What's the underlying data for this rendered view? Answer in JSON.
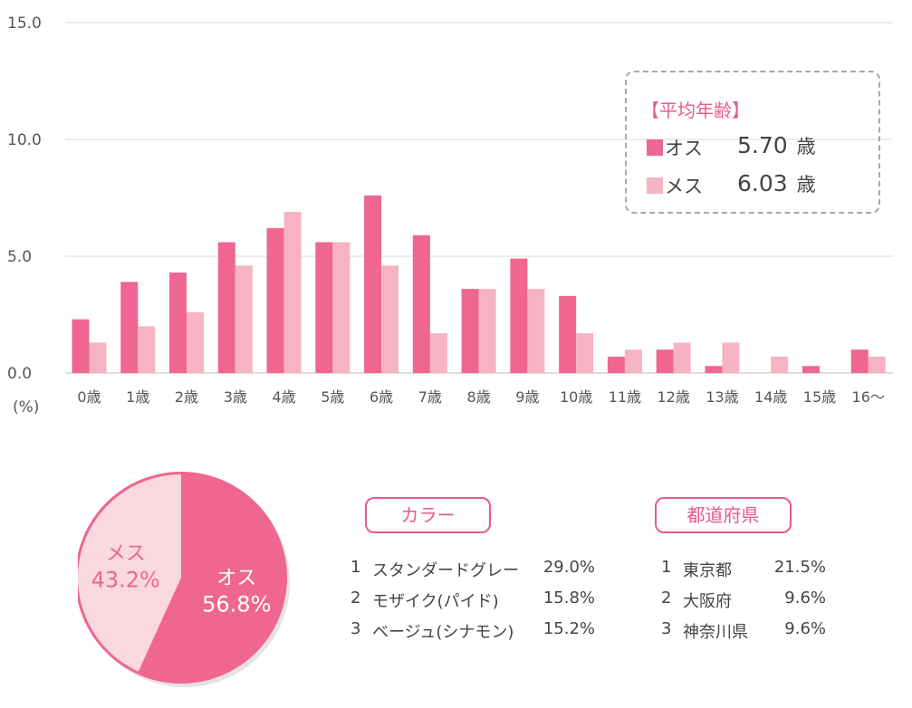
{
  "chart_data": {
    "type": "bar",
    "ylabel": "(%)",
    "ylim": [
      0,
      15
    ],
    "yticks": [
      "0.0",
      "5.0",
      "10.0",
      "15.0"
    ],
    "categories": [
      "0歳",
      "1歳",
      "2歳",
      "3歳",
      "4歳",
      "5歳",
      "6歳",
      "7歳",
      "8歳",
      "9歳",
      "10歳",
      "11歳",
      "12歳",
      "13歳",
      "14歳",
      "15歳",
      "16～"
    ],
    "series": [
      {
        "name": "オス",
        "color": "#ef6690",
        "values": [
          2.3,
          3.9,
          4.3,
          5.6,
          6.2,
          5.6,
          7.6,
          5.9,
          3.6,
          4.9,
          3.3,
          0.7,
          1.0,
          0.3,
          0.0,
          0.3,
          1.0
        ]
      },
      {
        "name": "メス",
        "color": "#f5b3c3",
        "values": [
          1.3,
          2.0,
          2.6,
          4.6,
          6.9,
          5.6,
          4.6,
          1.7,
          3.6,
          3.6,
          1.7,
          1.0,
          1.3,
          1.3,
          0.7,
          0.0,
          0.7
        ]
      }
    ]
  },
  "average": {
    "title": "【平均年齢】",
    "rows": [
      {
        "label": "オス",
        "value": "5.70",
        "unit": "歳",
        "color": "#ef6690"
      },
      {
        "label": "メス",
        "value": "6.03",
        "unit": "歳",
        "color": "#f5b3c3"
      }
    ]
  },
  "pie": {
    "slices": [
      {
        "label": "オス",
        "value": 56.8,
        "display": "56.8%",
        "color": "#ef6690"
      },
      {
        "label": "メス",
        "value": 43.2,
        "display": "43.2%",
        "color": "#f9d8e0"
      }
    ]
  },
  "color_ranking": {
    "title": "カラー",
    "items": [
      {
        "rank": "1",
        "name": "スタンダードグレー",
        "pct": "29.0%"
      },
      {
        "rank": "2",
        "name": "モザイク(パイド)",
        "pct": "15.8%"
      },
      {
        "rank": "3",
        "name": "ベージュ(シナモン)",
        "pct": "15.2%"
      }
    ]
  },
  "prefecture_ranking": {
    "title": "都道府県",
    "items": [
      {
        "rank": "1",
        "name": "東京都",
        "pct": "21.5%"
      },
      {
        "rank": "2",
        "name": "大阪府",
        "pct": "9.6%"
      },
      {
        "rank": "3",
        "name": "神奈川県",
        "pct": "9.6%"
      }
    ]
  }
}
